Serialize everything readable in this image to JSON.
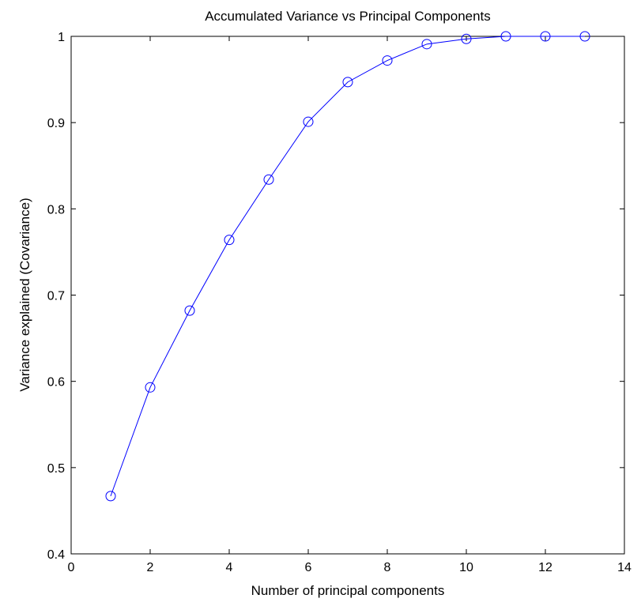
{
  "chart_data": {
    "type": "line",
    "title": "Accumulated Variance vs Principal Components",
    "xlabel": "Number of principal components",
    "ylabel": "Variance explained (Covariance)",
    "xlim": [
      0,
      14
    ],
    "ylim": [
      0.4,
      1
    ],
    "x_ticks": [
      0,
      2,
      4,
      6,
      8,
      10,
      12,
      14
    ],
    "y_ticks": [
      0.4,
      0.5,
      0.6,
      0.7,
      0.8,
      0.9,
      1
    ],
    "x_tick_labels": [
      "0",
      "2",
      "4",
      "6",
      "8",
      "10",
      "12",
      "14"
    ],
    "y_tick_labels": [
      "0.4",
      "0.5",
      "0.6",
      "0.7",
      "0.8",
      "0.9",
      "1"
    ],
    "grid": false,
    "marker": "circle",
    "line_color": "#0000ff",
    "series": [
      {
        "x": [
          1,
          2,
          3,
          4,
          5,
          6,
          7,
          8,
          9,
          10,
          11,
          12,
          13
        ],
        "values": [
          0.467,
          0.593,
          0.682,
          0.764,
          0.834,
          0.901,
          0.947,
          0.972,
          0.991,
          0.997,
          1.0,
          1.0,
          1.0
        ]
      }
    ]
  }
}
